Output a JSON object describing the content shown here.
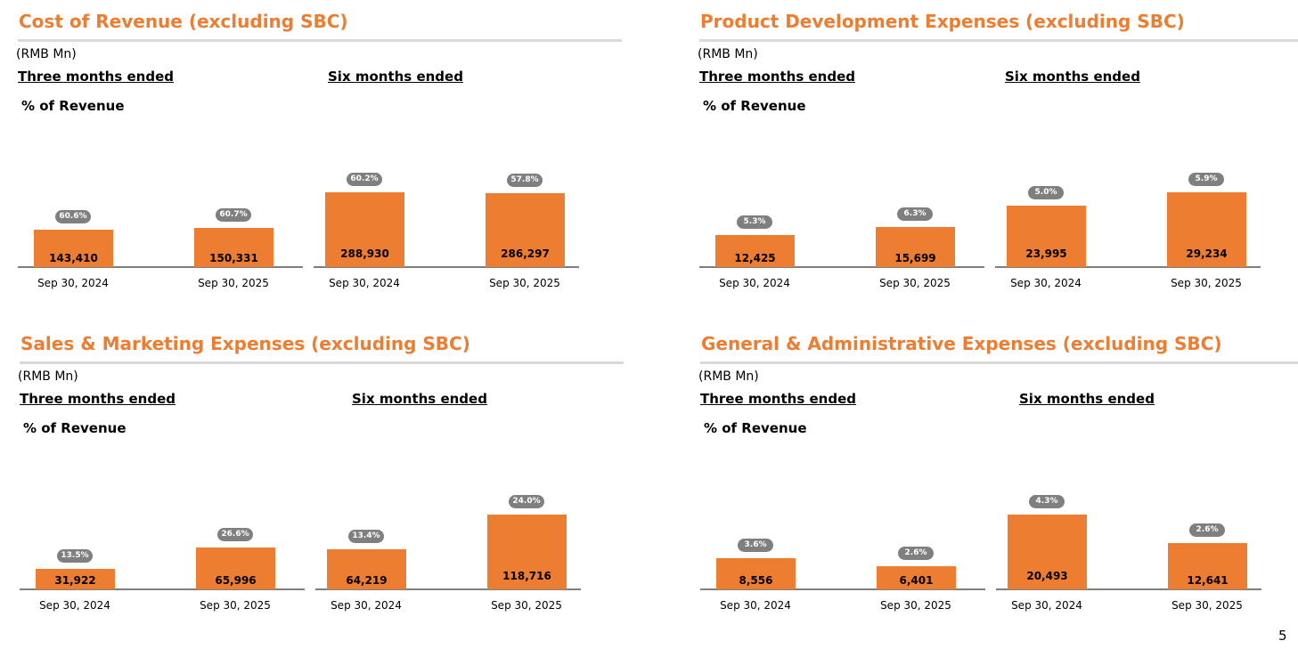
{
  "page_number": "5",
  "colors": {
    "bar": "#ed7d31",
    "title": "#ed7d31",
    "badge": "#7f7f7f"
  },
  "chart_data": [
    {
      "type": "bar",
      "title": "Cost of Revenue (excluding SBC)",
      "unit": "(RMB Mn)",
      "group_labels": [
        "Three months ended",
        "Six months ended"
      ],
      "badge_label": "% of Revenue",
      "categories": [
        "Sep 30, 2024",
        "Sep 30, 2025",
        "Sep 30, 2024",
        "Sep 30, 2025"
      ],
      "values": [
        143410,
        150331,
        288930,
        286297
      ],
      "value_labels": [
        "143,410",
        "150,331",
        "288,930",
        "286,297"
      ],
      "pct_labels": [
        "60.6%",
        "60.7%",
        "60.2%",
        "57.8%"
      ]
    },
    {
      "type": "bar",
      "title": "Product Development Expenses (excluding SBC)",
      "unit": "(RMB Mn)",
      "group_labels": [
        "Three months ended",
        "Six months ended"
      ],
      "badge_label": "% of Revenue",
      "categories": [
        "Sep 30, 2024",
        "Sep 30, 2025",
        "Sep 30, 2024",
        "Sep 30, 2025"
      ],
      "values": [
        12425,
        15699,
        23995,
        29234
      ],
      "value_labels": [
        "12,425",
        "15,699",
        "23,995",
        "29,234"
      ],
      "pct_labels": [
        "5.3%",
        "6.3%",
        "5.0%",
        "5.9%"
      ]
    },
    {
      "type": "bar",
      "title": "Sales & Marketing Expenses (excluding SBC)",
      "unit": "(RMB Mn)",
      "group_labels": [
        "Three months ended",
        "Six months ended"
      ],
      "badge_label": "% of Revenue",
      "categories": [
        "Sep 30, 2024",
        "Sep 30, 2025",
        "Sep 30, 2024",
        "Sep 30, 2025"
      ],
      "values": [
        31922,
        65996,
        64219,
        118716
      ],
      "value_labels": [
        "31,922",
        "65,996",
        "64,219",
        "118,716"
      ],
      "pct_labels": [
        "13.5%",
        "26.6%",
        "13.4%",
        "24.0%"
      ]
    },
    {
      "type": "bar",
      "title": "General & Administrative Expenses (excluding SBC)",
      "unit": "(RMB Mn)",
      "group_labels": [
        "Three months ended",
        "Six months ended"
      ],
      "badge_label": "% of Revenue",
      "categories": [
        "Sep 30, 2024",
        "Sep 30, 2025",
        "Sep 30, 2024",
        "Sep 30, 2025"
      ],
      "values": [
        8556,
        6401,
        20493,
        12641
      ],
      "value_labels": [
        "8,556",
        "6,401",
        "20,493",
        "12,641"
      ],
      "pct_labels": [
        "3.6%",
        "2.6%",
        "4.3%",
        "2.6%"
      ]
    }
  ]
}
